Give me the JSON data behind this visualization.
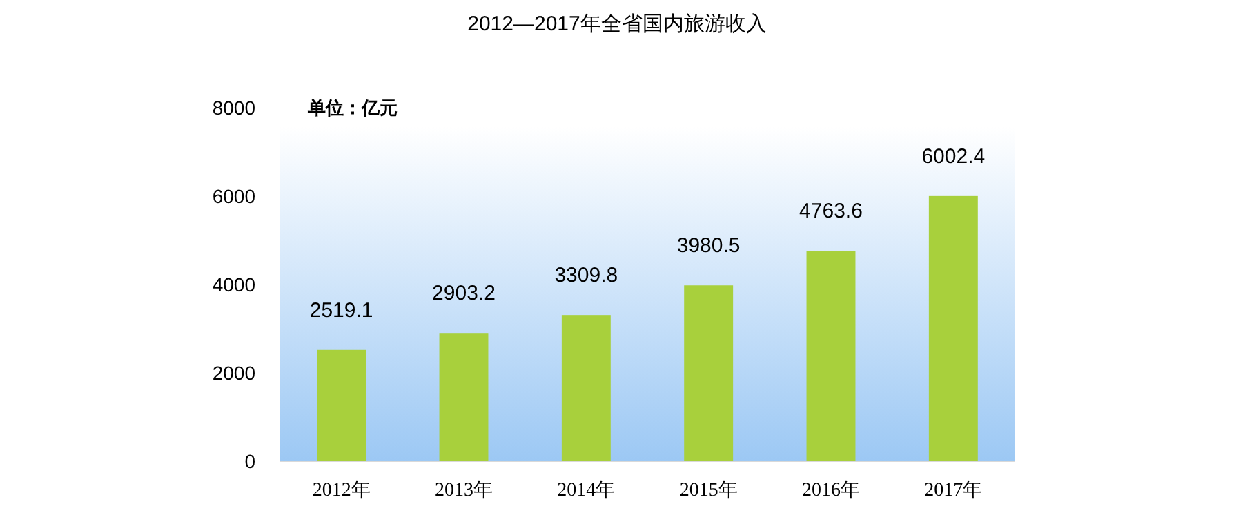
{
  "chart_data": {
    "type": "bar",
    "title": "2012—2017年全省国内旅游收入",
    "annotations": [
      "单位：亿元"
    ],
    "categories": [
      "2012年",
      "2013年",
      "2014年",
      "2015年",
      "2016年",
      "2017年"
    ],
    "values": [
      2519.1,
      2903.2,
      3309.8,
      3980.5,
      4763.6,
      6002.4
    ],
    "color": "#a8d03c",
    "ylim": [
      0,
      8000
    ],
    "yticks": [
      0,
      2000,
      4000,
      6000,
      8000
    ],
    "data_labels": true,
    "grid": false
  }
}
